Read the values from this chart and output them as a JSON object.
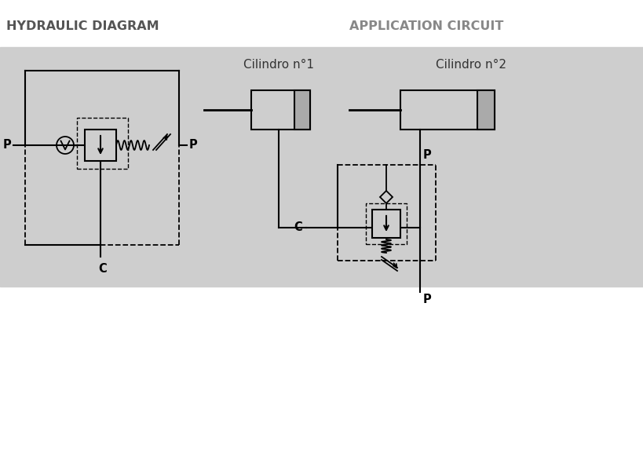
{
  "bg_white": "#ffffff",
  "bg_gray": "#cecece",
  "lc": "#000000",
  "title_left": "HYDRAULIC DIAGRAM",
  "title_right": "APPLICATION CIRCUIT",
  "label_P": "P",
  "label_C": "C",
  "cil1_label": "Cilindro n°1",
  "cil2_label": "Cilindro n°2",
  "lw": 1.5,
  "lw_thin": 1.1,
  "title_fs": 11.5,
  "label_fs": 10.5,
  "cil_fs": 11
}
